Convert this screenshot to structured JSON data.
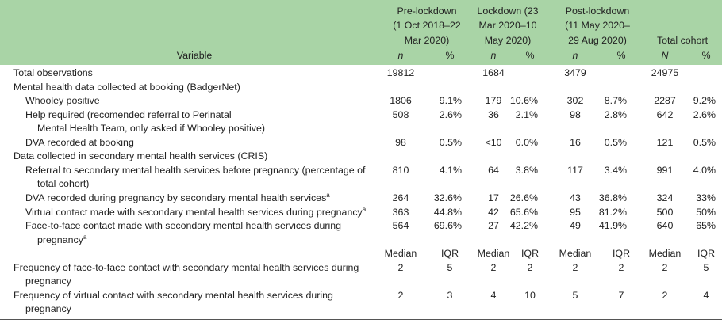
{
  "table": {
    "header": {
      "variable": "Variable",
      "groups": [
        {
          "lines": [
            "Pre-lockdown",
            "(1 Oct 2018–22",
            "Mar 2020)"
          ]
        },
        {
          "lines": [
            "Lockdown (23",
            "Mar 2020–10",
            "May 2020)"
          ]
        },
        {
          "lines": [
            "Post-lockdown",
            "(11 May 2020–",
            "29 Aug 2020)"
          ]
        },
        {
          "lines": [
            "Total cohort"
          ]
        }
      ]
    },
    "blocks": [
      {
        "subheaders": [
          "n",
          "%",
          "n",
          "%",
          "n",
          "%",
          "N",
          "%"
        ],
        "rows": [
          {
            "label": [
              "Total observations"
            ],
            "cells": [
              "19812",
              null,
              "1684",
              null,
              "3479",
              null,
              "24975",
              null
            ]
          },
          {
            "label": [
              "Mental health data collected at booking (BadgerNet)"
            ],
            "rows": [
              {
                "label": [
                  "Whooley positive"
                ],
                "cells": [
                  "1806",
                  "9.1%",
                  "179",
                  "10.6%",
                  "302",
                  "8.7%",
                  "2287",
                  "9.2%"
                ]
              },
              {
                "label": [
                  "Help required (recomended referral to Perinatal",
                  "Mental Health Team, only asked if Whooley positive)"
                ],
                "cells": [
                  "508",
                  "2.6%",
                  "36",
                  "2.1%",
                  "98",
                  "2.8%",
                  "642",
                  "2.6%"
                ]
              },
              {
                "label": [
                  "DVA recorded at booking"
                ],
                "cells": [
                  "98",
                  "0.5%",
                  "<10",
                  "0.0%",
                  "16",
                  "0.5%",
                  "121",
                  "0.5%"
                ]
              }
            ]
          },
          {
            "label": [
              "Data collected in secondary mental health services (CRIS)"
            ],
            "rows": [
              {
                "label": [
                  "Referral to secondary mental health services before pregnancy (percentage of",
                  "total cohort)"
                ],
                "cells": [
                  "810",
                  "4.1%",
                  "64",
                  "3.8%",
                  "117",
                  "3.4%",
                  "991",
                  "4.0%"
                ]
              },
              {
                "label": [
                  "DVA recorded during pregnancy by secondary mental health services"
                ],
                "note": "a",
                "cells": [
                  "264",
                  "32.6%",
                  "17",
                  "26.6%",
                  "43",
                  "36.8%",
                  "324",
                  "33%"
                ]
              },
              {
                "label": [
                  "Virtual contact made with secondary mental health services during pregnancy"
                ],
                "note": "a",
                "cells": [
                  "363",
                  "44.8%",
                  "42",
                  "65.6%",
                  "95",
                  "81.2%",
                  "500",
                  "50%"
                ]
              },
              {
                "label": [
                  "Face-to-face contact made with secondary mental health services during",
                  "pregnancy"
                ],
                "note": "a",
                "cells": [
                  "564",
                  "69.6%",
                  "27",
                  "42.2%",
                  "49",
                  "41.9%",
                  "640",
                  "65%"
                ]
              }
            ]
          }
        ]
      },
      {
        "subheaders": [
          "Median",
          "IQR",
          "Median",
          "IQR",
          "Median",
          "IQR",
          "Median",
          "IQR"
        ],
        "rows": [
          {
            "label": [
              "Frequency of face-to-face contact with secondary mental health services during",
              "pregnancy"
            ],
            "cells": [
              "2",
              "5",
              "2",
              "2",
              "2",
              "2",
              "2",
              "5"
            ]
          },
          {
            "label": [
              "Frequency of virtual contact with secondary mental health services during",
              "pregnancy"
            ],
            "cells": [
              "2",
              "3",
              "4",
              "10",
              "5",
              "7",
              "2",
              "4"
            ]
          }
        ]
      }
    ]
  }
}
